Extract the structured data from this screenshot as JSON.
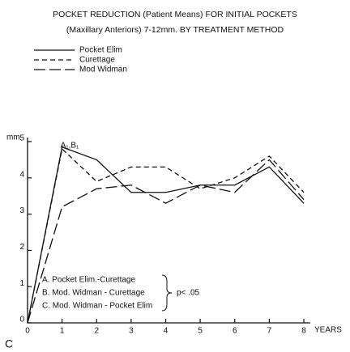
{
  "chart_data": {
    "type": "line",
    "title": "POCKET REDUCTION (Patient Means) FOR INITIAL POCKETS",
    "subtitle": "(Maxillary Anteriors) 7-12mm. BY TREATMENT METHOD",
    "y_label": "mm",
    "x_label": "YEARS",
    "x": [
      0,
      1,
      2,
      3,
      4,
      5,
      6,
      7,
      8
    ],
    "series": [
      {
        "name": "Pocket Elim",
        "color": "#111111",
        "dash": "solid",
        "values": [
          0,
          4.85,
          4.5,
          3.6,
          3.6,
          3.8,
          3.8,
          4.3,
          3.3
        ]
      },
      {
        "name": "Curettage",
        "color": "#111111",
        "dash": "short",
        "values": [
          0,
          4.8,
          3.9,
          4.3,
          4.3,
          3.7,
          4.0,
          4.6,
          3.6
        ]
      },
      {
        "name": "Mod Widman",
        "color": "#111111",
        "dash": "long",
        "values": [
          0,
          3.2,
          3.7,
          3.8,
          3.3,
          3.8,
          3.6,
          4.5,
          3.4
        ]
      }
    ],
    "xlim": [
      0,
      8
    ],
    "ylim": [
      0,
      5
    ],
    "xticks": [
      0,
      1,
      2,
      3,
      4,
      5,
      6,
      7,
      8
    ],
    "yticks": [
      0,
      1,
      2,
      3,
      4,
      5
    ],
    "annotation": "A₁,B₁",
    "notes": [
      "A. Pocket Elim.-Curettage",
      "B. Mod. Widman - Curettage",
      "C. Mod. Widman - Pocket Elim"
    ],
    "significance": "p< .05",
    "panel_label": "C"
  }
}
